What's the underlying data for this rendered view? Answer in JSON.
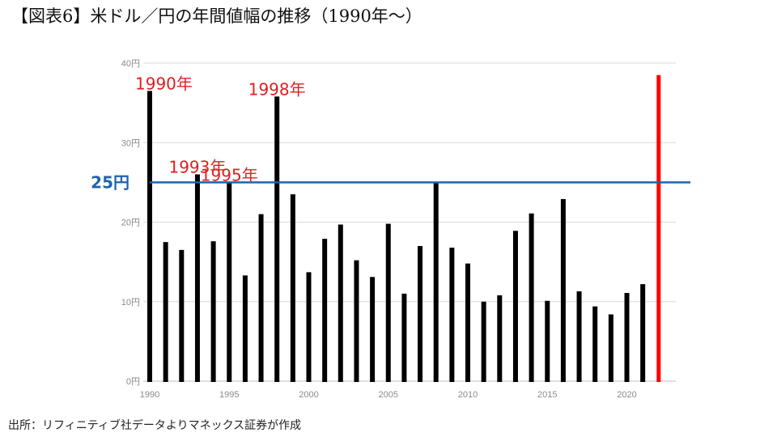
{
  "title": "【図表6】米ドル／円の年間値幅の推移（1990年～）",
  "source": "出所：リフィニティブ社データよりマネックス証券が作成",
  "chart_data": {
    "type": "bar",
    "title": "【図表6】米ドル／円の年間値幅の推移（1990年～）",
    "xlabel": "",
    "ylabel": "",
    "ylim": [
      0,
      40
    ],
    "xlim": [
      1990,
      2023
    ],
    "grid": true,
    "yticks": [
      {
        "value": 0,
        "label": "0円"
      },
      {
        "value": 10,
        "label": "10円"
      },
      {
        "value": 20,
        "label": "20円"
      },
      {
        "value": 30,
        "label": "30円"
      },
      {
        "value": 40,
        "label": "40円"
      }
    ],
    "xticks": [
      {
        "value": 1990,
        "label": "1990"
      },
      {
        "value": 1995,
        "label": "1995"
      },
      {
        "value": 2000,
        "label": "2000"
      },
      {
        "value": 2005,
        "label": "2005"
      },
      {
        "value": 2010,
        "label": "2010"
      },
      {
        "value": 2015,
        "label": "2015"
      },
      {
        "value": 2020,
        "label": "2020"
      }
    ],
    "x": [
      1990,
      1991,
      1992,
      1993,
      1994,
      1995,
      1996,
      1997,
      1998,
      1999,
      2000,
      2001,
      2002,
      2003,
      2004,
      2005,
      2006,
      2007,
      2008,
      2009,
      2010,
      2011,
      2012,
      2013,
      2014,
      2015,
      2016,
      2017,
      2018,
      2019,
      2020,
      2021,
      2022
    ],
    "values": [
      36.5,
      17.5,
      16.5,
      26,
      17.6,
      25,
      13.3,
      21,
      35.8,
      23.5,
      13.7,
      17.9,
      19.7,
      15.2,
      13.1,
      19.8,
      11,
      17,
      24.9,
      16.8,
      14.8,
      10,
      10.8,
      18.9,
      21.1,
      10.1,
      22.9,
      11.3,
      9.4,
      8.4,
      11.1,
      12.2,
      38.5
    ],
    "highlight": {
      "year": 2022,
      "color": "#ff0000"
    },
    "bar_color": "#000000",
    "reference_line": {
      "value": 25,
      "label": "25円",
      "color": "#1f63ad"
    },
    "annotations": [
      {
        "text": "1990年",
        "year": 1990
      },
      {
        "text": "1993年",
        "year": 1993
      },
      {
        "text": "1995年",
        "year": 1995
      },
      {
        "text": "1998年",
        "year": 1998
      }
    ]
  }
}
